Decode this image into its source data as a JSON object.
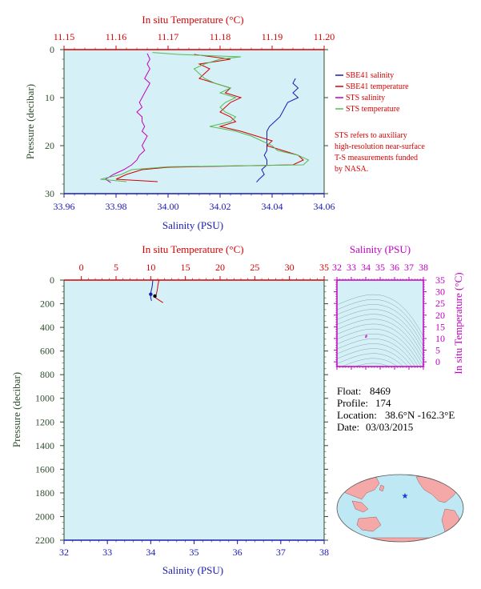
{
  "chart_data": [
    {
      "type": "line",
      "id": "top",
      "top_axis_label": "In situ Temperature (°C)",
      "x_label": "Salinity (PSU)",
      "y_label": "Pressure (decibar)",
      "temp_ticks": [
        "11.15",
        "11.16",
        "11.17",
        "11.18",
        "11.19",
        "11.20"
      ],
      "temp_lim": [
        11.15,
        11.2
      ],
      "sal_ticks": [
        "33.96",
        "33.98",
        "34.00",
        "34.02",
        "34.04",
        "34.06"
      ],
      "sal_lim": [
        33.96,
        34.06
      ],
      "p_ticks": [
        "0",
        "10",
        "20",
        "30"
      ],
      "p_lim": [
        0,
        30
      ],
      "background": "#d6f0f8",
      "legend": [
        {
          "name": "SBE41 salinity",
          "color": "#1a1ab0"
        },
        {
          "name": "SBE41 temperature",
          "color": "#d40000"
        },
        {
          "name": "STS salinity",
          "color": "#c000c0"
        },
        {
          "name": "STS temperature",
          "color": "#55bb55"
        }
      ],
      "note_lines": [
        "STS refers to auxiliary",
        "high-resolution near-surface",
        "T-S measurements funded",
        "by NASA."
      ],
      "series": [
        {
          "name": "SBE41 salinity",
          "color": "#1a1ab0",
          "x_unit": "salinity",
          "points": [
            [
              34.049,
              6
            ],
            [
              34.048,
              7
            ],
            [
              34.05,
              8
            ],
            [
              34.048,
              9
            ],
            [
              34.05,
              10
            ],
            [
              34.046,
              11
            ],
            [
              34.045,
              12
            ],
            [
              34.044,
              13
            ],
            [
              34.043,
              14
            ],
            [
              34.041,
              15
            ],
            [
              34.039,
              16
            ],
            [
              34.038,
              17
            ],
            [
              34.038,
              18
            ],
            [
              34.038,
              19
            ],
            [
              34.038,
              20
            ],
            [
              34.038,
              21
            ],
            [
              34.037,
              22
            ],
            [
              34.038,
              23
            ],
            [
              34.038,
              24
            ],
            [
              34.036,
              25
            ],
            [
              34.037,
              26
            ],
            [
              34.035,
              27
            ],
            [
              34.034,
              27.6
            ]
          ]
        },
        {
          "name": "SBE41 temperature",
          "color": "#d40000",
          "x_unit": "temperature",
          "points": [
            [
              11.175,
              1
            ],
            [
              11.182,
              2
            ],
            [
              11.176,
              3
            ],
            [
              11.178,
              4
            ],
            [
              11.176,
              6
            ],
            [
              11.179,
              7
            ],
            [
              11.182,
              8
            ],
            [
              11.181,
              9
            ],
            [
              11.184,
              10
            ],
            [
              11.182,
              11
            ],
            [
              11.181,
              12
            ],
            [
              11.18,
              13
            ],
            [
              11.182,
              14
            ],
            [
              11.183,
              15
            ],
            [
              11.18,
              16
            ],
            [
              11.184,
              17
            ],
            [
              11.187,
              18
            ],
            [
              11.19,
              19
            ],
            [
              11.189,
              20
            ],
            [
              11.192,
              21
            ],
            [
              11.195,
              22
            ],
            [
              11.196,
              23
            ],
            [
              11.194,
              24
            ],
            [
              11.17,
              24.5
            ],
            [
              11.165,
              25
            ],
            [
              11.162,
              26
            ],
            [
              11.16,
              27
            ],
            [
              11.168,
              27.5
            ]
          ]
        },
        {
          "name": "STS salinity",
          "color": "#c000c0",
          "x_unit": "salinity",
          "points": [
            [
              33.992,
              0.8
            ],
            [
              33.993,
              2
            ],
            [
              33.992,
              3
            ],
            [
              33.993,
              4
            ],
            [
              33.992,
              5
            ],
            [
              33.991,
              6
            ],
            [
              33.993,
              7
            ],
            [
              33.992,
              8
            ],
            [
              33.991,
              9
            ],
            [
              33.99,
              10
            ],
            [
              33.989,
              11
            ],
            [
              33.99,
              12
            ],
            [
              33.988,
              13
            ],
            [
              33.99,
              14
            ],
            [
              33.99,
              15
            ],
            [
              33.991,
              16
            ],
            [
              33.99,
              17
            ],
            [
              33.992,
              18
            ],
            [
              33.991,
              19
            ],
            [
              33.99,
              20
            ],
            [
              33.991,
              21
            ],
            [
              33.989,
              22
            ],
            [
              33.988,
              23
            ],
            [
              33.986,
              24
            ],
            [
              33.983,
              25
            ],
            [
              33.979,
              26
            ],
            [
              33.976,
              27
            ],
            [
              33.978,
              27.7
            ]
          ]
        },
        {
          "name": "STS temperature",
          "color": "#55bb55",
          "x_unit": "temperature",
          "points": [
            [
              11.167,
              0.6
            ],
            [
              11.172,
              1
            ],
            [
              11.184,
              1.5
            ],
            [
              11.18,
              2
            ],
            [
              11.177,
              3
            ],
            [
              11.175,
              4
            ],
            [
              11.176,
              5
            ],
            [
              11.177,
              6
            ],
            [
              11.179,
              7
            ],
            [
              11.182,
              8
            ],
            [
              11.18,
              9
            ],
            [
              11.183,
              10
            ],
            [
              11.181,
              11
            ],
            [
              11.18,
              12
            ],
            [
              11.181,
              13
            ],
            [
              11.183,
              14
            ],
            [
              11.182,
              15
            ],
            [
              11.178,
              16
            ],
            [
              11.183,
              17
            ],
            [
              11.186,
              18
            ],
            [
              11.188,
              19
            ],
            [
              11.19,
              20
            ],
            [
              11.191,
              21
            ],
            [
              11.195,
              22
            ],
            [
              11.197,
              23
            ],
            [
              11.196,
              24
            ],
            [
              11.17,
              24.4
            ],
            [
              11.163,
              25
            ],
            [
              11.161,
              26
            ],
            [
              11.157,
              27
            ],
            [
              11.162,
              27.5
            ]
          ]
        }
      ]
    },
    {
      "type": "line",
      "id": "main",
      "top_axis_label": "In situ Temperature (°C)",
      "x_label": "Salinity (PSU)",
      "y_label": "Pressure (decibar)",
      "temp_ticks": [
        "0",
        "5",
        "10",
        "15",
        "20",
        "25",
        "30",
        "35"
      ],
      "temp_lim": [
        -2.5,
        35
      ],
      "sal_ticks": [
        "32",
        "33",
        "34",
        "35",
        "36",
        "37",
        "38"
      ],
      "sal_lim": [
        32,
        38
      ],
      "p_ticks": [
        "0",
        "200",
        "400",
        "600",
        "800",
        "1000",
        "1200",
        "1400",
        "1600",
        "1800",
        "2000",
        "2200"
      ],
      "p_lim": [
        0,
        2200
      ],
      "background": "#d6f0f8",
      "series": [
        {
          "name": "SBE41 salinity",
          "color": "#1a1ab0",
          "x_unit": "salinity",
          "points": [
            [
              34.05,
              0
            ],
            [
              34.04,
              30
            ],
            [
              34.03,
              60
            ],
            [
              34.01,
              90
            ],
            [
              34.0,
              120
            ],
            [
              34.0,
              150
            ],
            [
              34.02,
              175
            ]
          ]
        },
        {
          "name": "SBE41 temperature",
          "color": "#d40000",
          "x_unit": "temperature",
          "points": [
            [
              11.18,
              0
            ],
            [
              11.05,
              40
            ],
            [
              10.95,
              80
            ],
            [
              10.8,
              120
            ],
            [
              10.7,
              150
            ],
            [
              11.6,
              185
            ],
            [
              11.8,
              190
            ]
          ]
        }
      ],
      "markers": [
        {
          "name": "surface-marker-salinity",
          "color": "#1a1ab0",
          "salinity": 34.0,
          "pressure": 120
        },
        {
          "name": "surface-marker-temperature",
          "color": "#000000",
          "temperature": 10.6,
          "pressure": 135
        }
      ]
    },
    {
      "type": "scatter",
      "id": "ts",
      "top_axis_label": "Salinity (PSU)",
      "right_axis_label": "In situ Temperature (°C)",
      "sal_ticks": [
        "32",
        "33",
        "34",
        "35",
        "36",
        "37",
        "38"
      ],
      "sal_lim": [
        32,
        38
      ],
      "temp_ticks": [
        "0",
        "5",
        "10",
        "15",
        "20",
        "25",
        "30",
        "35"
      ],
      "temp_lim": [
        -2,
        35
      ],
      "background": "#d6f0f8",
      "points": [
        [
          34.03,
          11.0
        ],
        [
          34.01,
          10.6
        ],
        [
          34.05,
          11.2
        ]
      ],
      "point_color": "#d040d0"
    }
  ],
  "info": {
    "float_label": "Float:",
    "float_value": "8469",
    "profile_label": "Profile:",
    "profile_value": "174",
    "location_label": "Location:",
    "location_value": "38.6°N  -162.3°E",
    "date_label": "Date:",
    "date_value": "03/03/2015"
  },
  "map": {
    "ocean_color": "#bfe8f5",
    "land_color": "#f4a8a8",
    "marker_color": "#1a3cd0",
    "marker_lat": 38.6,
    "marker_lon": -162.3
  },
  "footer": "",
  "colors": {
    "temperature_axis": "#d40000",
    "salinity_axis": "#1a1ab0",
    "pressure_axis": "#2e4d2e",
    "ts_axis": "#c000c0"
  }
}
